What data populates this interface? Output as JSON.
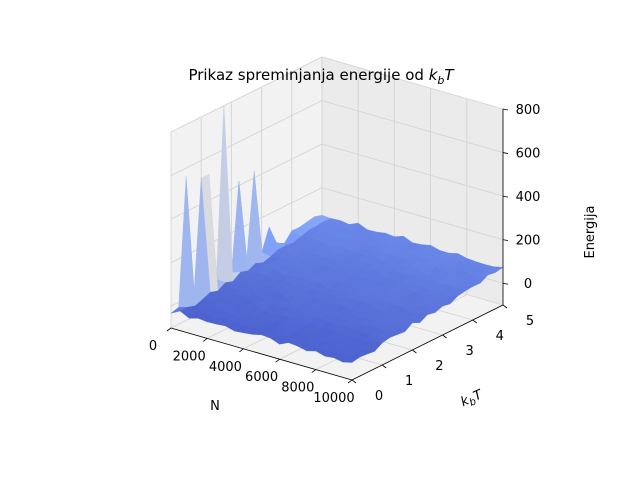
{
  "chart_data": {
    "type": "surface3d",
    "title": "Prikaz spreminjanja energije od",
    "title_math": "k",
    "title_math_sub": "b",
    "title_math_tail": "T",
    "xlabel": "N",
    "ylabel_main": "k",
    "ylabel_sub": "b",
    "ylabel_tail": "T",
    "zlabel": "Energija",
    "x_ticks": [
      "0",
      "2000",
      "4000",
      "6000",
      "8000",
      "10000"
    ],
    "y_ticks": [
      "0",
      "1",
      "2",
      "3",
      "4",
      "5"
    ],
    "z_ticks": [
      "0",
      "200",
      "400",
      "600",
      "800"
    ],
    "xlim": [
      0,
      10000
    ],
    "ylim": [
      0,
      5
    ],
    "zlim": [
      -100,
      800
    ],
    "colormap": "coolwarm",
    "grid": true,
    "x_values": [
      0,
      500,
      1000,
      1500,
      2000,
      2500,
      3000,
      3500,
      4000,
      4500,
      5000,
      5500,
      6000,
      6500,
      7000,
      7500,
      8000,
      8500,
      9000,
      9500,
      10000
    ],
    "y_values": [
      0.0,
      0.25,
      0.5,
      0.75,
      1.0,
      1.25,
      1.5,
      1.75,
      2.0,
      2.25,
      2.5,
      2.75,
      3.0,
      3.25,
      3.5,
      3.75,
      4.0,
      4.25,
      4.5,
      4.75,
      5.0
    ],
    "peaks_at_N0": [
      {
        "kbT": 0.5,
        "energy": 560
      },
      {
        "kbT": 1.0,
        "energy": 520
      },
      {
        "kbT": 1.25,
        "energy": 520
      },
      {
        "kbT": 1.75,
        "energy": 800
      },
      {
        "kbT": 2.25,
        "energy": 420
      },
      {
        "kbT": 2.75,
        "energy": 430
      },
      {
        "kbT": 3.25,
        "energy": 140
      },
      {
        "kbT": 3.75,
        "energy": 30
      }
    ]
  }
}
